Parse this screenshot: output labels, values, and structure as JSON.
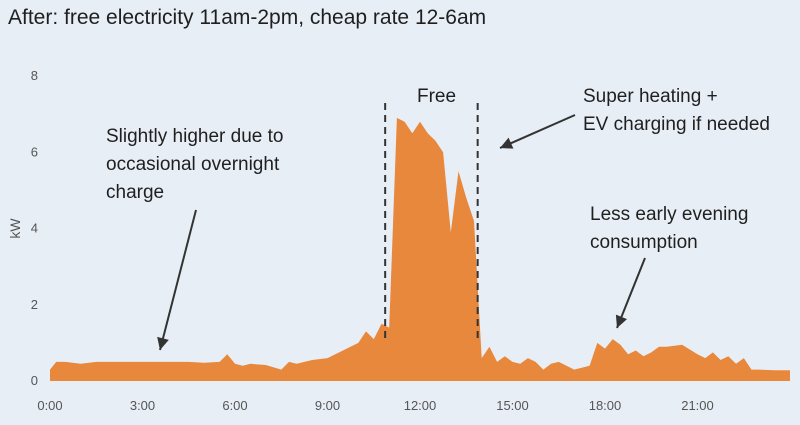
{
  "slide": {
    "title": "After: free electricity 11am-2pm, cheap rate 12-6am"
  },
  "colors": {
    "area": "#e8883c",
    "background": "#e8eef6",
    "text": "#1f1f1f",
    "axis_text": "#555555"
  },
  "chart_data": {
    "type": "area",
    "title": "After: free electricity 11am-2pm, cheap rate 12-6am",
    "xlabel": "",
    "ylabel": "kW",
    "ylim": [
      0,
      8
    ],
    "xlim": [
      0,
      24
    ],
    "grid": false,
    "legend": "none",
    "x_ticks": [
      "0:00",
      "3:00",
      "6:00",
      "9:00",
      "12:00",
      "15:00",
      "18:00",
      "21:00"
    ],
    "x_tick_values": [
      0,
      3,
      6,
      9,
      12,
      15,
      18,
      21
    ],
    "y_ticks": [
      "0",
      "2",
      "4",
      "6",
      "8"
    ],
    "y_tick_values": [
      0,
      2,
      4,
      6,
      8
    ],
    "series": [
      {
        "x": [
          0,
          0.2,
          0.5,
          1,
          1.5,
          2,
          2.5,
          3,
          3.5,
          4,
          4.5,
          5,
          5.5,
          5.75,
          6,
          6.25,
          6.5,
          7,
          7.5,
          7.75,
          8,
          8.5,
          9,
          9.5,
          10,
          10.25,
          10.5,
          10.75,
          11,
          11.25,
          11.5,
          11.75,
          12,
          12.25,
          12.5,
          12.75,
          13,
          13.25,
          13.5,
          13.75,
          14,
          14.25,
          14.5,
          14.75,
          15,
          15.25,
          15.5,
          15.75,
          16,
          16.25,
          16.5,
          17,
          17.5,
          17.75,
          18,
          18.25,
          18.5,
          18.75,
          19,
          19.25,
          19.5,
          19.75,
          20,
          20.5,
          21,
          21.25,
          21.5,
          21.75,
          22,
          22.25,
          22.5,
          22.75,
          23,
          23.5,
          24
        ],
        "values": [
          0.3,
          0.5,
          0.5,
          0.45,
          0.5,
          0.5,
          0.5,
          0.5,
          0.5,
          0.5,
          0.5,
          0.48,
          0.5,
          0.7,
          0.45,
          0.4,
          0.45,
          0.42,
          0.3,
          0.5,
          0.45,
          0.55,
          0.6,
          0.8,
          1.0,
          1.3,
          1.1,
          1.5,
          1.4,
          6.9,
          6.8,
          6.5,
          6.8,
          6.5,
          6.3,
          6.0,
          3.9,
          5.5,
          4.8,
          4.2,
          0.6,
          0.9,
          0.5,
          0.65,
          0.5,
          0.45,
          0.6,
          0.5,
          0.3,
          0.45,
          0.5,
          0.3,
          0.4,
          1.0,
          0.85,
          1.1,
          0.95,
          0.7,
          0.8,
          0.65,
          0.75,
          0.9,
          0.9,
          0.95,
          0.7,
          0.6,
          0.75,
          0.55,
          0.65,
          0.45,
          0.6,
          0.3,
          0.3,
          0.28,
          0.28
        ]
      }
    ],
    "annotations": {
      "free": "Free",
      "left_note": [
        "Slightly higher due to",
        "occasional overnight",
        "charge"
      ],
      "right_note": [
        "Super heating +",
        "EV charging if needed"
      ],
      "evening_note": [
        "Less early evening",
        "consumption"
      ]
    },
    "marker_lines_x": [
      11,
      14
    ]
  }
}
